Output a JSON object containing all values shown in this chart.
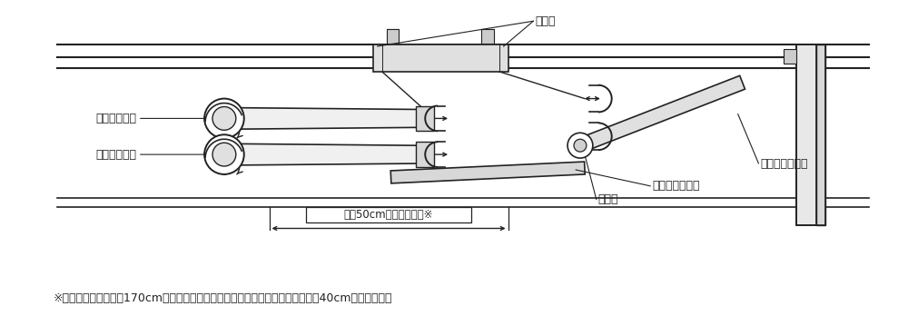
{
  "background_color": "#ffffff",
  "line_color": "#222222",
  "text_color": "#222222",
  "footnote": "※：参考として、身長170cmの場合、膝置きシャフトと下部シャフトの間隔は絀40cmになります。",
  "label_chosei_haba": "調整幅",
  "label_jobu_shaft": "上部シャフト",
  "label_kabu_shaft": "下部シャフト",
  "label_hizaoki_shaft": "膝置きシャフト",
  "label_hizaoki_plate": "膝置きプレート",
  "label_color": "カラー",
  "label_measurement": "最大50cmまで調整可能※",
  "fig_width": 10.0,
  "fig_height": 3.7,
  "dpi": 100
}
